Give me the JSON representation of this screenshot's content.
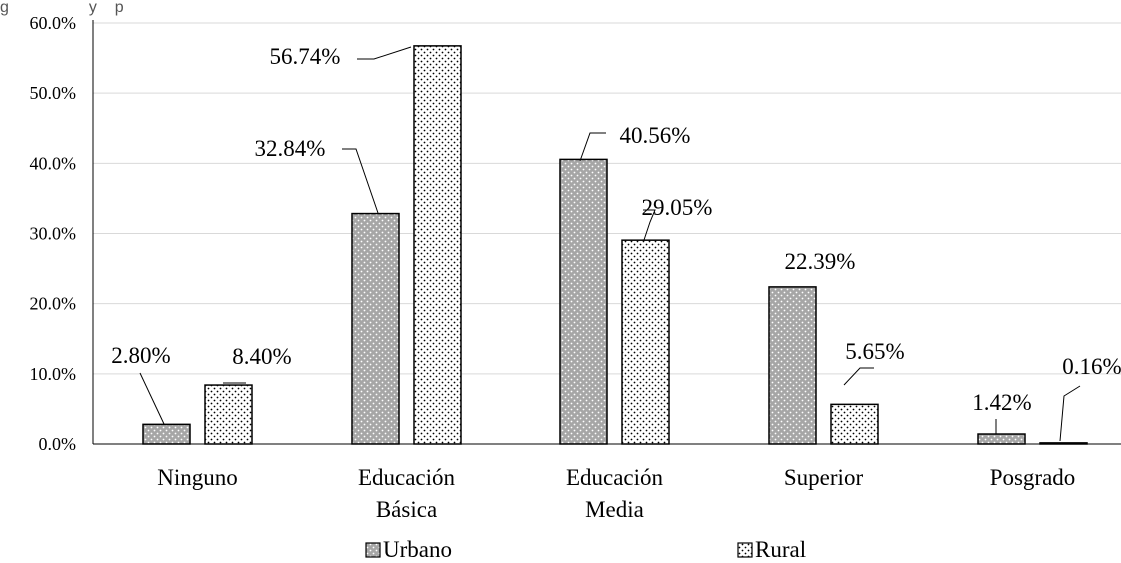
{
  "caption_fragment": "g                  y    p",
  "chart_data": {
    "type": "bar",
    "categories": [
      [
        "Ninguno"
      ],
      [
        "Educación",
        "Básica"
      ],
      [
        "Educación",
        "Media"
      ],
      [
        "Superior"
      ],
      [
        "Posgrado"
      ]
    ],
    "series": [
      {
        "name": "Urbano",
        "values": [
          2.8,
          32.84,
          40.56,
          22.39,
          1.42
        ],
        "labels": [
          "2.80%",
          "32.84%",
          "40.56%",
          "22.39%",
          "1.42%"
        ],
        "pattern": "grey-dots"
      },
      {
        "name": "Rural",
        "values": [
          8.4,
          56.74,
          29.05,
          5.65,
          0.16
        ],
        "labels": [
          "8.40%",
          "56.74%",
          "29.05%",
          "5.65%",
          "0.16%"
        ],
        "pattern": "white-dots"
      }
    ],
    "yticks": [
      "0.0%",
      "10.0%",
      "20.0%",
      "30.0%",
      "40.0%",
      "50.0%",
      "60.0%"
    ],
    "ylim": [
      0,
      60
    ],
    "grid": true,
    "legend": "bottom-center",
    "colors": {
      "urbano_fill": "#a6a6a6",
      "rural_fill": "#ffffff",
      "gridline": "#d9d9d9",
      "outline": "#000000"
    }
  }
}
